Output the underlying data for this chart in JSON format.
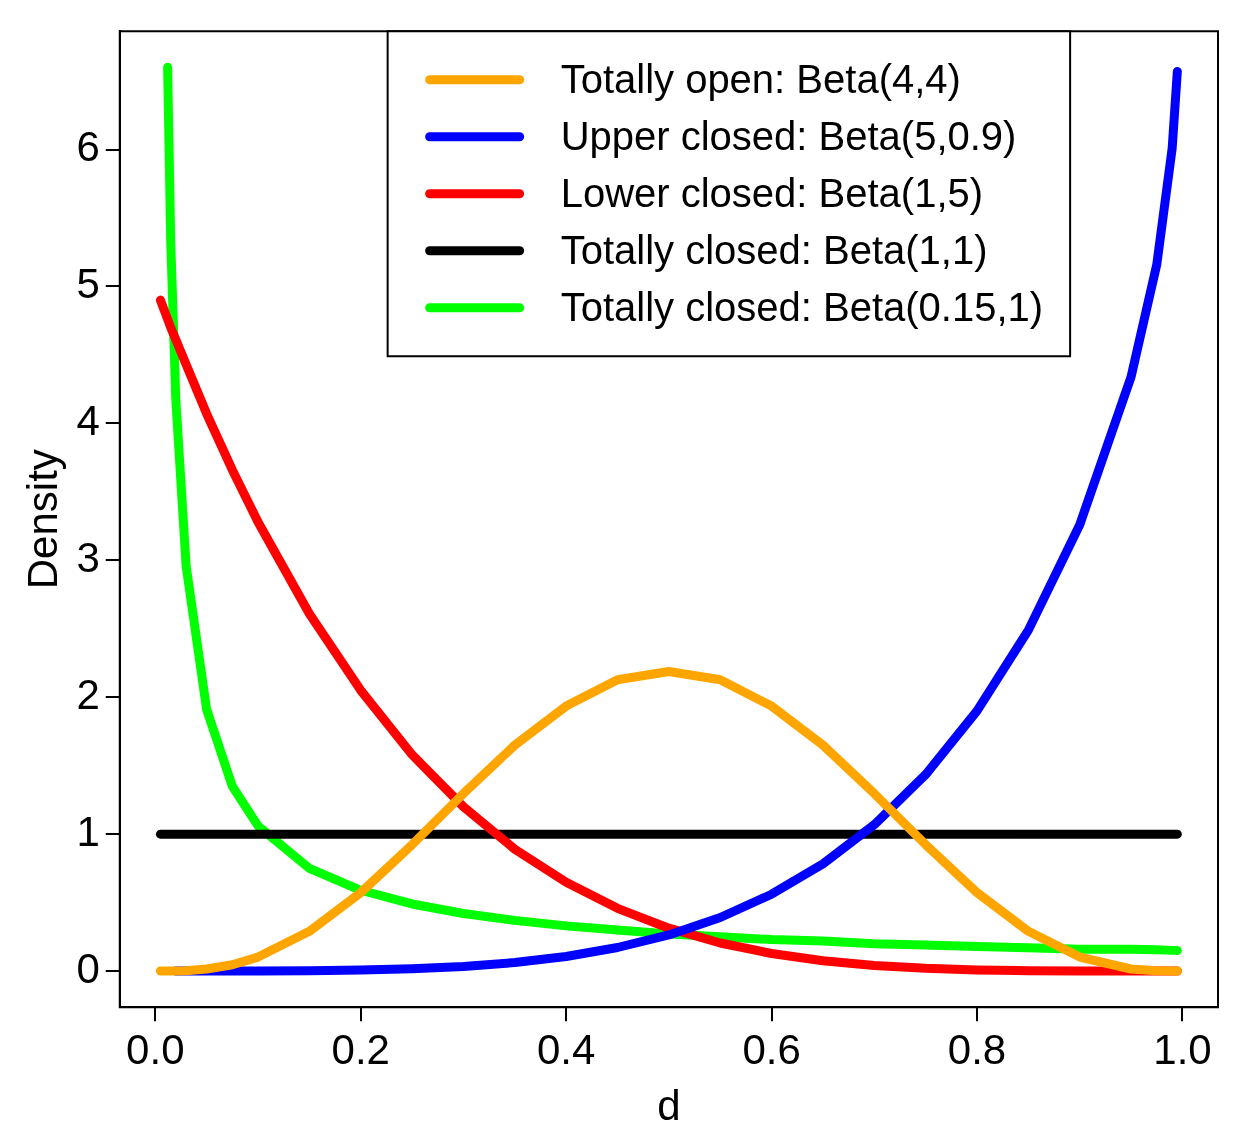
{
  "chart_data": {
    "type": "line",
    "xlabel": "d",
    "ylabel": "Density",
    "x": [
      0.005,
      0.012,
      0.015,
      0.02,
      0.03,
      0.05,
      0.075,
      0.1,
      0.15,
      0.2,
      0.25,
      0.3,
      0.35,
      0.4,
      0.45,
      0.5,
      0.55,
      0.6,
      0.65,
      0.7,
      0.75,
      0.8,
      0.85,
      0.9,
      0.95,
      0.975,
      0.99,
      0.995
    ],
    "series": [
      {
        "name": "Totally open: Beta(4,4)",
        "color": "#ffa500",
        "values": [
          0,
          0,
          0,
          0.001,
          0.003,
          0.015,
          0.046,
          0.102,
          0.29,
          0.573,
          0.923,
          1.296,
          1.65,
          1.935,
          2.127,
          2.188,
          2.127,
          1.935,
          1.65,
          1.296,
          0.923,
          0.573,
          0.29,
          0.102,
          0.015,
          0.002,
          0,
          0
        ]
      },
      {
        "name": "Upper closed: Beta(5,0.9)",
        "color": "#0000ff",
        "values": [
          null,
          null,
          null,
          0,
          0,
          0,
          0,
          0,
          0.002,
          0.007,
          0.016,
          0.033,
          0.062,
          0.106,
          0.172,
          0.264,
          0.391,
          0.561,
          0.783,
          1.069,
          1.435,
          1.9,
          2.49,
          3.26,
          4.34,
          5.16,
          6.01,
          6.57
        ]
      },
      {
        "name": "Lower closed: Beta(1,5)",
        "color": "#ff0000",
        "values": [
          4.9,
          4.76,
          4.7,
          4.61,
          4.43,
          4.07,
          3.66,
          3.28,
          2.61,
          2.05,
          1.58,
          1.2,
          0.89,
          0.648,
          0.458,
          0.313,
          0.205,
          0.128,
          0.075,
          0.041,
          0.02,
          0.008,
          0.003,
          0.001,
          0,
          0,
          0,
          0
        ]
      },
      {
        "name": "Totally closed: Beta(1,1)",
        "color": "#000000",
        "values": [
          1,
          1,
          1,
          1,
          1,
          1,
          1,
          1,
          1,
          1,
          1,
          1,
          1,
          1,
          1,
          1,
          1,
          1,
          1,
          1,
          1,
          1,
          1,
          1,
          1,
          1,
          1,
          1
        ]
      },
      {
        "name": "Totally closed: Beta(0.15,1)",
        "color": "#00ff00",
        "values": [
          null,
          6.6,
          5.33,
          4.17,
          2.96,
          1.91,
          1.35,
          1.06,
          0.75,
          0.59,
          0.49,
          0.42,
          0.37,
          0.33,
          0.3,
          0.27,
          0.25,
          0.23,
          0.22,
          0.2,
          0.19,
          0.18,
          0.17,
          0.16,
          0.16,
          0.155,
          0.151,
          0.15
        ]
      }
    ],
    "xlim": [
      -0.0346,
      1.0346
    ],
    "xticks": [
      {
        "value": 0,
        "label": "0.0"
      },
      0.2,
      0.4,
      0.6,
      0.8,
      {
        "value": 1,
        "label": "1.0"
      }
    ],
    "ylim": [
      -0.264,
      6.864
    ],
    "yticks": [
      0,
      1,
      2,
      3,
      4,
      5,
      6
    ],
    "grid": false,
    "legend": "top",
    "marker": "none",
    "line_style": "solid"
  }
}
